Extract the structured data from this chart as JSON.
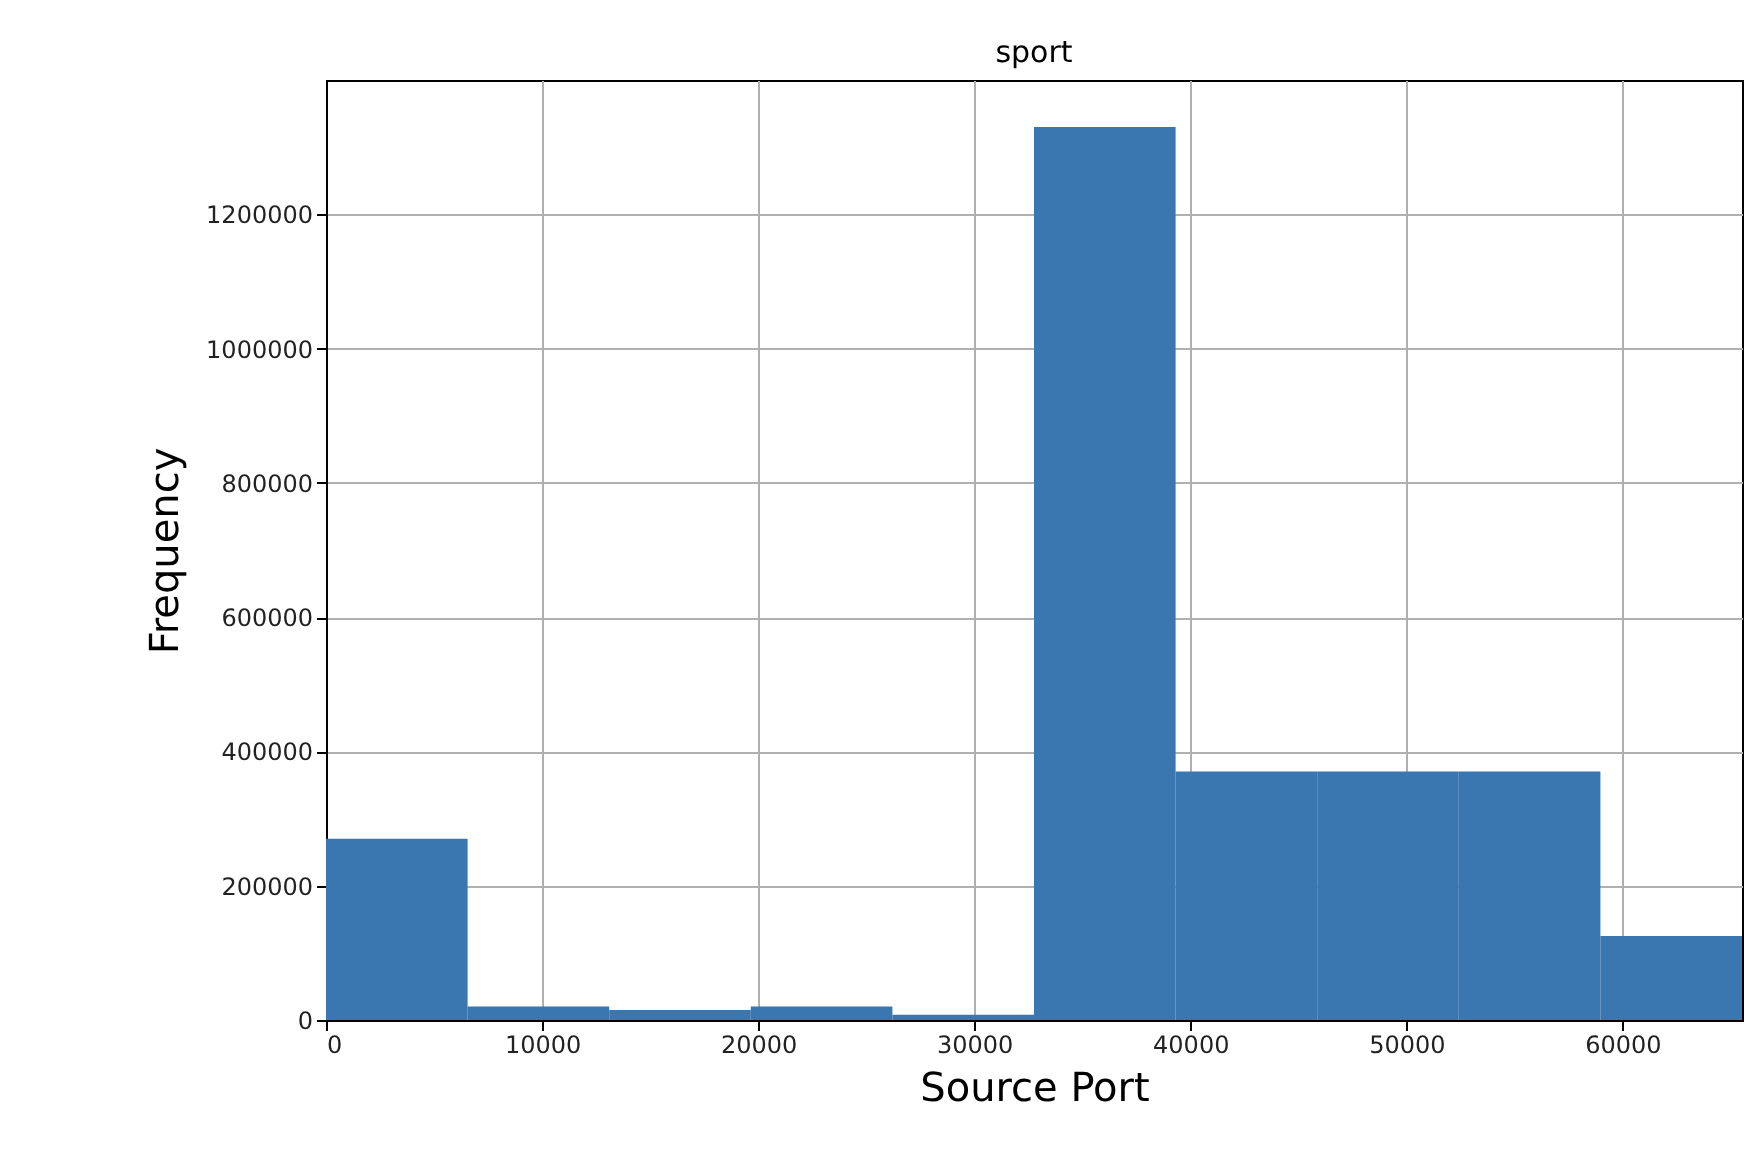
{
  "chart_data": {
    "type": "histogram",
    "title": "sport",
    "xlabel": "Source Port",
    "ylabel": "Frequency",
    "bins": [
      0,
      6553.5,
      13107,
      19660.5,
      26214,
      32767.5,
      39321,
      45874.5,
      52428,
      58981.5,
      65535
    ],
    "values": [
      270000,
      20000,
      15000,
      20000,
      8000,
      1330000,
      370000,
      370000,
      370000,
      125000
    ],
    "color": "#3a76af",
    "xlim": [
      0,
      65535
    ],
    "ylim": [
      0,
      1400000
    ],
    "xticks": [
      0,
      10000,
      20000,
      30000,
      40000,
      50000,
      60000
    ],
    "yticks": [
      0,
      200000,
      400000,
      600000,
      800000,
      1000000,
      1200000
    ],
    "grid": true
  }
}
